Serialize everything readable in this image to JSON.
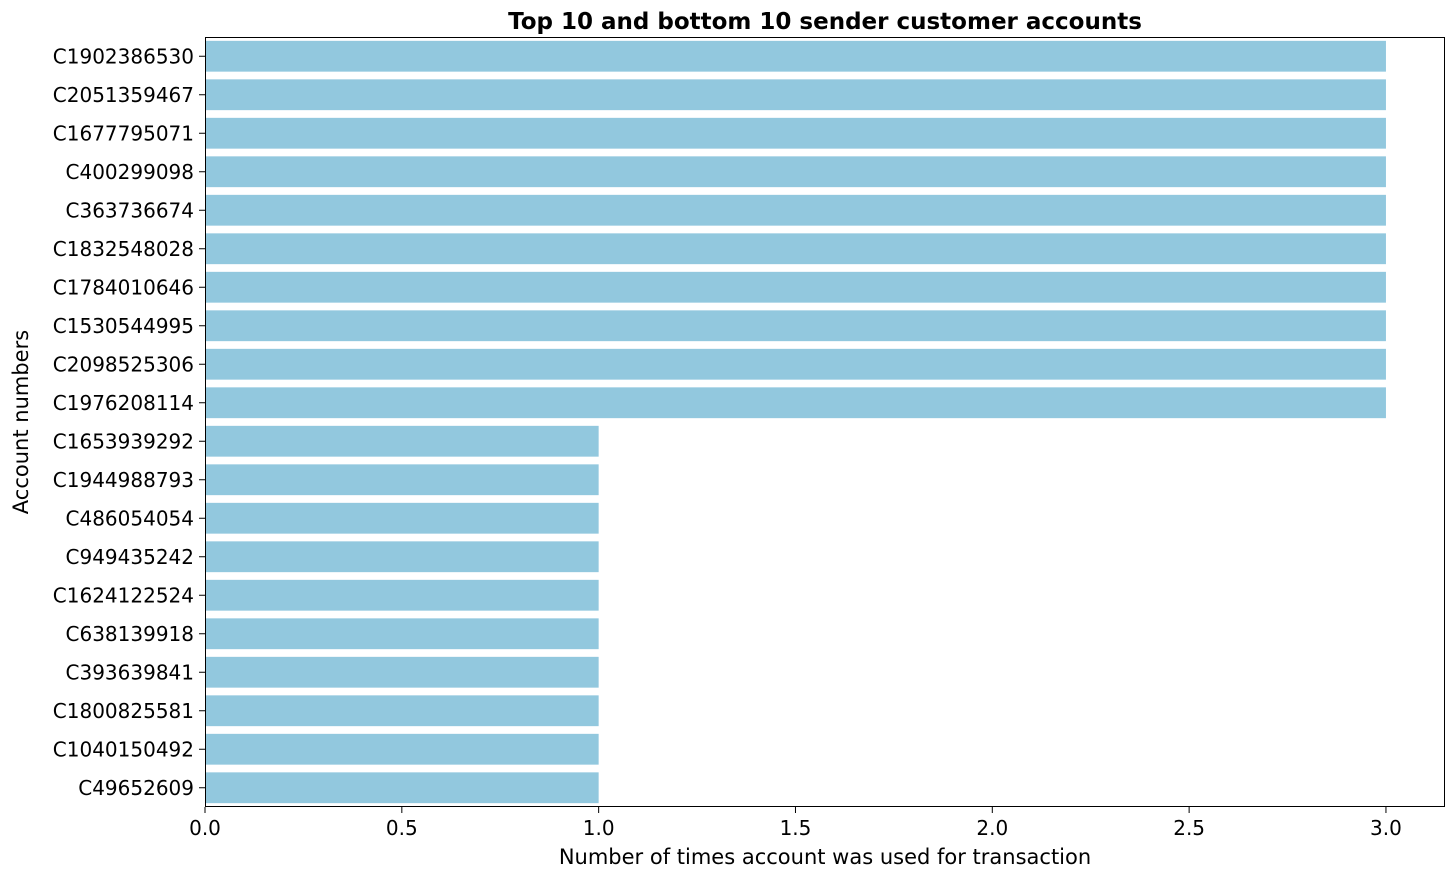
{
  "chart_data": {
    "type": "bar",
    "orientation": "horizontal",
    "title": "Top 10 and bottom 10 sender customer accounts",
    "xlabel": "Number of times account was used for transaction",
    "ylabel": "Account numbers",
    "xlim": [
      0,
      3.15
    ],
    "xticks": [
      "0.0",
      "0.5",
      "1.0",
      "1.5",
      "2.0",
      "2.5",
      "3.0"
    ],
    "bar_color": "#92c8de",
    "grid": false,
    "categories": [
      "C1902386530",
      "C2051359467",
      "C1677795071",
      "C400299098",
      "C363736674",
      "C1832548028",
      "C1784010646",
      "C1530544995",
      "C2098525306",
      "C1976208114",
      "C1653939292",
      "C1944988793",
      "C486054054",
      "C949435242",
      "C1624122524",
      "C638139918",
      "C393639841",
      "C1800825581",
      "C1040150492",
      "C49652609"
    ],
    "values": [
      3,
      3,
      3,
      3,
      3,
      3,
      3,
      3,
      3,
      3,
      1,
      1,
      1,
      1,
      1,
      1,
      1,
      1,
      1,
      1
    ]
  }
}
